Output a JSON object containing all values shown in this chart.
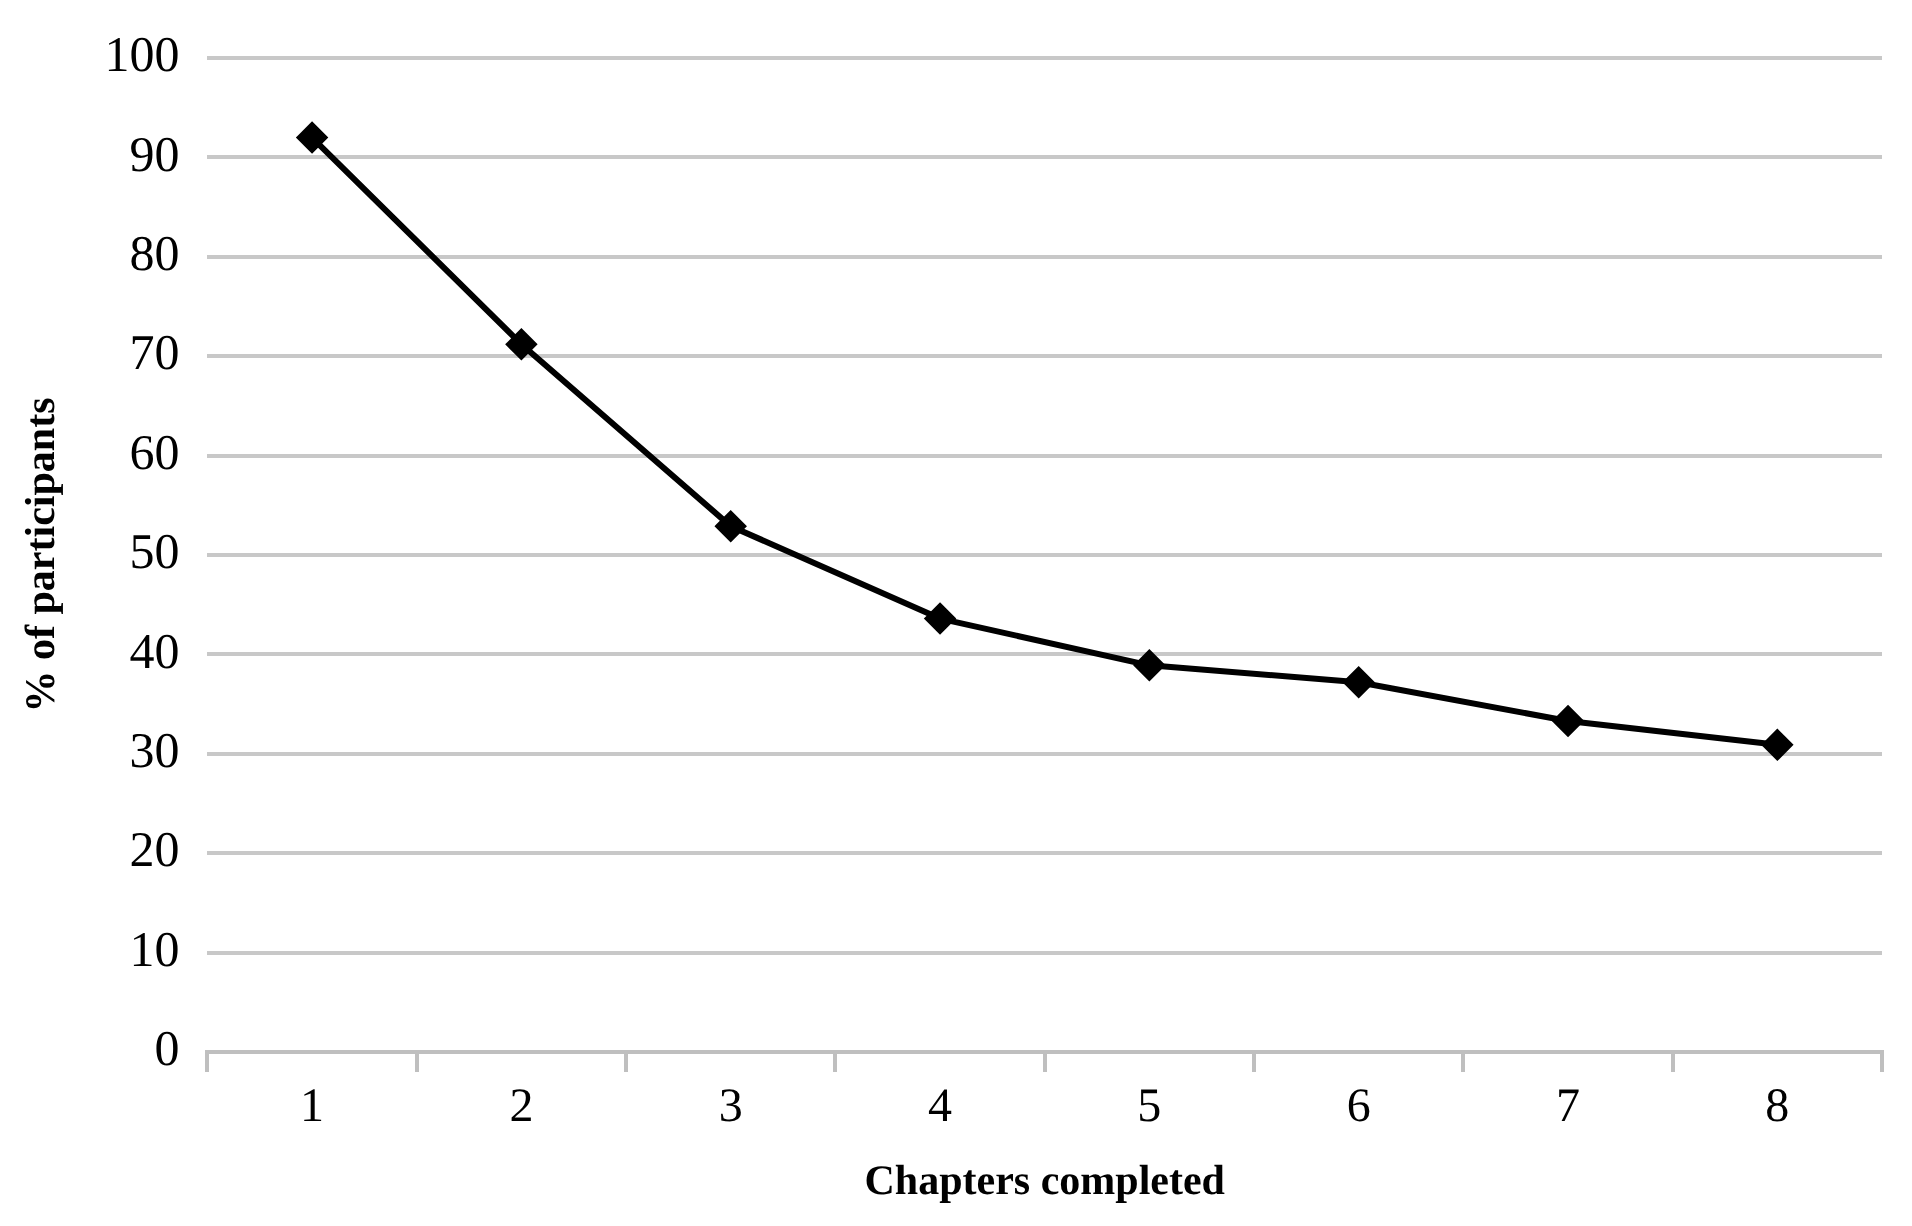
{
  "chart_data": {
    "type": "line",
    "xlabel": "Chapters completed",
    "ylabel": "% of participants",
    "categories": [
      "1",
      "2",
      "3",
      "4",
      "5",
      "6",
      "7",
      "8"
    ],
    "series": [
      {
        "color": "#000000",
        "values": [
          92.0,
          71.2,
          52.9,
          43.6,
          38.9,
          37.2,
          33.3,
          30.9
        ]
      }
    ],
    "ylim": [
      0,
      100
    ],
    "yticks": [
      0,
      10,
      20,
      30,
      40,
      50,
      60,
      70,
      80,
      90,
      100
    ],
    "grid": "y",
    "legend": false,
    "marker": "diamond",
    "line_style": "solid"
  }
}
